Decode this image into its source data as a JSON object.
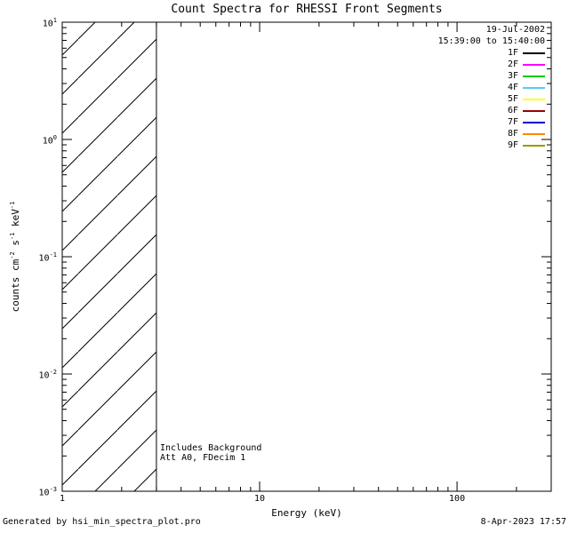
{
  "title": "Count Spectra for RHESSI Front Segments",
  "legend": {
    "date": "19-Jul-2002",
    "time_range": "15:39:00 to 15:40:00",
    "entries": [
      {
        "label": "1F",
        "color": "#000000"
      },
      {
        "label": "2F",
        "color": "#ff00ff"
      },
      {
        "label": "3F",
        "color": "#00cc00"
      },
      {
        "label": "4F",
        "color": "#55ccff"
      },
      {
        "label": "5F",
        "color": "#ffff00"
      },
      {
        "label": "6F",
        "color": "#990000"
      },
      {
        "label": "7F",
        "color": "#0000cc"
      },
      {
        "label": "8F",
        "color": "#ff8800"
      },
      {
        "label": "9F",
        "color": "#999900"
      }
    ]
  },
  "annotations": [
    "Includes Background",
    "Att A0, FDecim 1"
  ],
  "footer": {
    "generated_by": "Generated by hsi_min_spectra_plot.pro",
    "timestamp": "8-Apr-2023 17:57"
  },
  "ylabel_parts": [
    {
      "text": "counts cm"
    },
    {
      "sup": "-2"
    },
    {
      "text": " s"
    },
    {
      "sup": "-1"
    },
    {
      "text": " keV"
    },
    {
      "sup": "-1"
    }
  ],
  "chart_data": {
    "type": "line",
    "title": "Count Spectra for RHESSI Front Segments",
    "xlabel": "Energy (keV)",
    "ylabel": "counts cm^-2 s^-1 keV^-1",
    "xscale": "log",
    "yscale": "log",
    "xlim": [
      1,
      300
    ],
    "ylim": [
      0.001,
      10
    ],
    "x_ticks": [
      1,
      10,
      100
    ],
    "y_tick_exponents": [
      1,
      0,
      -1,
      -2,
      -3
    ],
    "grid": false,
    "legend_position": "top-right",
    "series": [],
    "hatched_region": {
      "x_start": 1,
      "x_end": 3,
      "style": "diagonal-hatch",
      "note": "hatched band from 1 to 3 keV spanning full y-range; no spectra curves plotted"
    },
    "axes_color": "#000000",
    "background": "#ffffff"
  }
}
